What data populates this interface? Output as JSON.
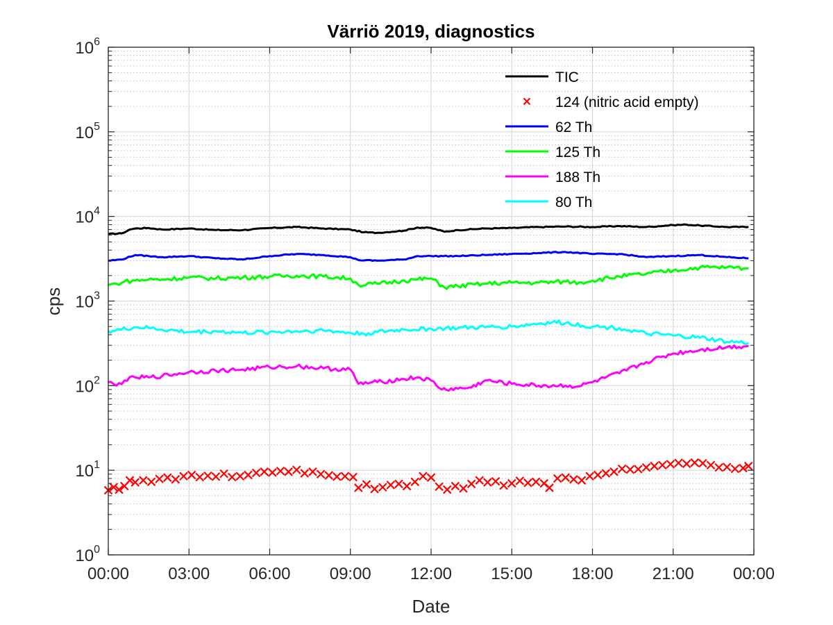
{
  "chart_data": {
    "type": "line",
    "title": "Värriö 2019, diagnostics",
    "xlabel": "Date",
    "ylabel": "cps",
    "yscale": "log",
    "ylim": [
      1,
      1000000
    ],
    "ytick_base": "10",
    "ytick_exponents": [
      "0",
      "1",
      "2",
      "3",
      "4",
      "5",
      "6"
    ],
    "xlim_hours": [
      0,
      24
    ],
    "xtick_labels": [
      "00:00",
      "03:00",
      "06:00",
      "09:00",
      "12:00",
      "15:00",
      "18:00",
      "21:00",
      "00:00"
    ],
    "grid": true,
    "legend_position": "top-right",
    "colors": {
      "tic": "#000000",
      "m124": "#ff0000",
      "th62": "#0000ff",
      "th125": "#00ff00",
      "th188": "#ff00ff",
      "th80": "#00ffff"
    },
    "series": [
      {
        "name": "TIC",
        "key": "tic",
        "style": "line",
        "x": [
          0,
          0.5,
          0.8,
          1.0,
          1.5,
          2.0,
          3.0,
          4.0,
          5.0,
          6.0,
          7.0,
          8.0,
          9.0,
          9.5,
          10.0,
          11.0,
          11.5,
          12.0,
          12.5,
          13.0,
          14.0,
          15.0,
          16.0,
          17.0,
          18.0,
          19.0,
          20.0,
          21.0,
          21.5,
          22.0,
          23.0,
          23.8
        ],
        "y": [
          6200,
          6300,
          7000,
          7200,
          7300,
          7000,
          7200,
          6900,
          6900,
          7300,
          7500,
          7200,
          7000,
          6500,
          6400,
          6800,
          7400,
          7300,
          6600,
          6900,
          7200,
          7300,
          7500,
          7600,
          7500,
          7700,
          7500,
          7900,
          8000,
          7800,
          7500,
          7500
        ]
      },
      {
        "name": "124 (nitric acid empty)",
        "key": "m124",
        "style": "marker",
        "x": [
          0.0,
          0.2,
          0.4,
          0.6,
          0.8,
          1.0,
          1.3,
          1.6,
          1.9,
          2.2,
          2.5,
          2.8,
          3.1,
          3.4,
          3.7,
          4.0,
          4.3,
          4.6,
          4.9,
          5.2,
          5.5,
          5.8,
          6.1,
          6.4,
          6.7,
          7.0,
          7.3,
          7.6,
          7.9,
          8.2,
          8.5,
          8.8,
          9.1,
          9.3,
          9.6,
          9.9,
          10.2,
          10.5,
          10.8,
          11.1,
          11.4,
          11.7,
          12.0,
          12.3,
          12.6,
          12.9,
          13.2,
          13.5,
          13.8,
          14.1,
          14.4,
          14.7,
          15.0,
          15.3,
          15.6,
          15.9,
          16.2,
          16.4,
          16.7,
          17.0,
          17.3,
          17.6,
          17.9,
          18.2,
          18.5,
          18.8,
          19.1,
          19.4,
          19.7,
          20.0,
          20.3,
          20.6,
          20.9,
          21.2,
          21.5,
          21.8,
          22.1,
          22.4,
          22.7,
          23.0,
          23.3,
          23.6,
          23.8
        ],
        "y": [
          5.8,
          6.3,
          5.9,
          6.5,
          7.6,
          7.2,
          7.6,
          7.3,
          7.9,
          8.2,
          7.8,
          8.5,
          8.8,
          8.3,
          8.6,
          8.4,
          9.1,
          8.3,
          8.5,
          8.8,
          9.3,
          9.6,
          9.4,
          9.8,
          9.6,
          10.1,
          9.2,
          9.6,
          9.0,
          8.7,
          8.4,
          8.5,
          8.3,
          6.2,
          6.8,
          6.0,
          6.3,
          6.7,
          6.9,
          6.5,
          7.3,
          8.5,
          8.2,
          6.4,
          5.9,
          6.5,
          6.1,
          6.9,
          7.6,
          7.2,
          7.4,
          6.6,
          7.0,
          7.5,
          7.1,
          7.3,
          7.0,
          6.2,
          8.0,
          8.2,
          7.8,
          7.6,
          8.5,
          8.8,
          9.2,
          9.6,
          10.4,
          10.2,
          10.3,
          10.8,
          11.2,
          11.5,
          11.8,
          12.2,
          11.9,
          12.3,
          12.1,
          11.5,
          10.8,
          10.9,
          10.4,
          10.6,
          11.2
        ]
      },
      {
        "name": "62 Th",
        "key": "th62",
        "style": "line",
        "x": [
          0,
          0.5,
          1.0,
          1.5,
          2.0,
          3.0,
          4.0,
          5.0,
          6.0,
          7.0,
          8.0,
          9.0,
          9.3,
          10.0,
          11.0,
          11.5,
          12.0,
          13.0,
          14.0,
          15.0,
          16.0,
          17.0,
          18.0,
          19.0,
          20.0,
          21.0,
          22.0,
          23.0,
          23.8
        ],
        "y": [
          3000,
          3100,
          3500,
          3400,
          3300,
          3400,
          3200,
          3100,
          3400,
          3600,
          3500,
          3300,
          3050,
          3000,
          3100,
          3400,
          3400,
          3400,
          3500,
          3600,
          3700,
          3800,
          3600,
          3600,
          3300,
          3400,
          3500,
          3300,
          3200
        ]
      },
      {
        "name": "125 Th",
        "key": "th125",
        "style": "line",
        "x": [
          0,
          0.3,
          0.6,
          1.0,
          1.5,
          2.0,
          3.0,
          4.0,
          5.0,
          6.0,
          7.0,
          8.0,
          9.0,
          9.3,
          10.0,
          11.0,
          11.5,
          12.0,
          12.5,
          13.0,
          14.0,
          15.0,
          16.0,
          17.0,
          17.5,
          18.0,
          19.0,
          20.0,
          21.0,
          22.0,
          23.0,
          23.8
        ],
        "y": [
          1550,
          1600,
          1700,
          1750,
          1800,
          1800,
          1900,
          1850,
          1900,
          1950,
          2000,
          1950,
          1850,
          1550,
          1600,
          1750,
          1800,
          1850,
          1450,
          1500,
          1600,
          1650,
          1650,
          1700,
          1650,
          1750,
          1950,
          2100,
          2300,
          2500,
          2500,
          2450
        ]
      },
      {
        "name": "188 Th",
        "key": "th188",
        "style": "line",
        "x": [
          0,
          0.3,
          0.6,
          1.0,
          1.5,
          2.0,
          3.0,
          4.0,
          5.0,
          6.0,
          7.0,
          8.0,
          9.0,
          9.3,
          10.0,
          11.0,
          11.5,
          12.0,
          12.4,
          13.0,
          13.5,
          14.0,
          15.0,
          16.0,
          17.0,
          17.5,
          18.0,
          19.0,
          20.0,
          21.0,
          22.0,
          23.0,
          23.8
        ],
        "y": [
          110,
          100,
          115,
          125,
          125,
          130,
          145,
          150,
          155,
          165,
          170,
          160,
          155,
          105,
          110,
          120,
          125,
          115,
          90,
          92,
          95,
          115,
          105,
          100,
          100,
          98,
          110,
          140,
          190,
          240,
          265,
          285,
          295
        ]
      },
      {
        "name": "80 Th",
        "key": "th80",
        "style": "line",
        "x": [
          0,
          0.5,
          1.0,
          1.5,
          2.0,
          3.0,
          4.0,
          5.0,
          6.0,
          7.0,
          8.0,
          9.0,
          9.5,
          10.0,
          11.0,
          12.0,
          13.0,
          14.0,
          15.0,
          16.0,
          16.5,
          17.0,
          18.0,
          19.0,
          20.0,
          21.0,
          22.0,
          23.0,
          23.8
        ],
        "y": [
          440,
          460,
          490,
          480,
          460,
          430,
          440,
          420,
          430,
          440,
          450,
          420,
          410,
          430,
          460,
          470,
          480,
          490,
          500,
          540,
          560,
          550,
          500,
          480,
          410,
          390,
          370,
          330,
          320
        ]
      }
    ]
  }
}
